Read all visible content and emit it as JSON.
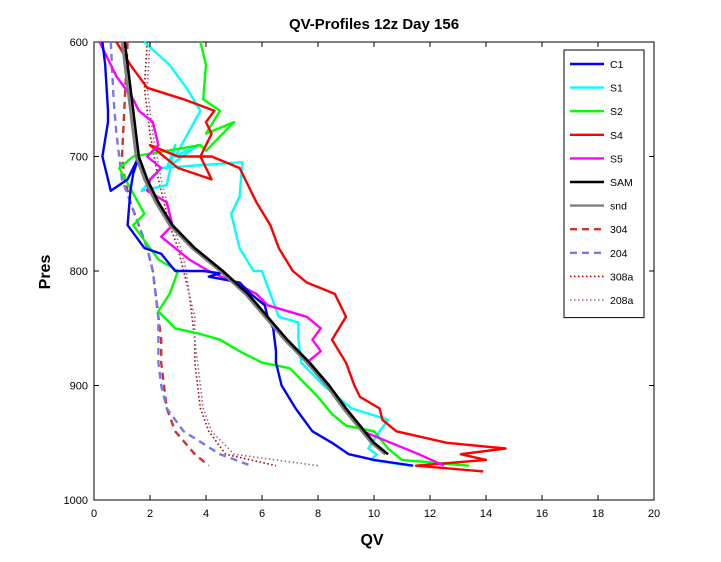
{
  "chart_data": {
    "type": "line",
    "title": "QV-Profiles 12z Day 156",
    "xlabel": "QV",
    "ylabel": "Pres",
    "xlim": [
      0,
      20
    ],
    "ylim": [
      600,
      1000
    ],
    "y_reversed": true,
    "x_ticks": [
      "0",
      "2",
      "4",
      "6",
      "8",
      "10",
      "12",
      "14",
      "16",
      "18",
      "20"
    ],
    "y_ticks": [
      "600",
      "700",
      "800",
      "900",
      "1000"
    ],
    "grid": false,
    "legend_position": "top-right",
    "series": [
      {
        "name": "C1",
        "color": "#0000ff",
        "style": "solid",
        "x": [
          0.3,
          0.4,
          0.5,
          0.5,
          0.3,
          0.6,
          1.2,
          1.6,
          1.4,
          1.3,
          1.2,
          1.8,
          2.4,
          2.9,
          3.3,
          3.9,
          4.5,
          4.1,
          5.2,
          5.6,
          6.1,
          6.2,
          6.4,
          6.5,
          6.5,
          6.6,
          6.7,
          7.2,
          7.8,
          8.5,
          9.1,
          10.0,
          11.4
        ],
        "y": [
          600,
          620,
          660,
          670,
          700,
          730,
          720,
          700,
          715,
          730,
          760,
          780,
          785,
          800,
          800,
          800,
          802,
          805,
          810,
          820,
          830,
          840,
          850,
          870,
          880,
          890,
          900,
          920,
          940,
          950,
          960,
          965,
          970
        ]
      },
      {
        "name": "S1",
        "color": "#00ffff",
        "style": "solid",
        "x": [
          1.8,
          2.7,
          3.3,
          3.8,
          2.9,
          3.7,
          2.6,
          2.9,
          2.6,
          1.7,
          2.4,
          5.3,
          5.2,
          4.9,
          5.2,
          5.7,
          6.0,
          6.6,
          7.3,
          7.3,
          7.4,
          8.2,
          9.2,
          10.5,
          10.2,
          9.8,
          10.1,
          9.9,
          11.3
        ],
        "y": [
          600,
          620,
          640,
          660,
          700,
          690,
          710,
          690,
          725,
          730,
          710,
          705,
          735,
          750,
          780,
          800,
          800,
          840,
          845,
          860,
          880,
          900,
          920,
          930,
          940,
          955,
          960,
          965,
          970
        ]
      },
      {
        "name": "S2",
        "color": "#00ff00",
        "style": "solid",
        "x": [
          3.8,
          4.0,
          3.9,
          4.5,
          4.0,
          5.0,
          4.0,
          3.8,
          1.4,
          0.9,
          1.8,
          1.4,
          2.3,
          3.0,
          2.7,
          2.3,
          2.9,
          3.8,
          4.5,
          5.2,
          6.0,
          7.0,
          8.0,
          8.5,
          9.0,
          10.0,
          10.5,
          11.0,
          13.4
        ],
        "y": [
          600,
          620,
          650,
          660,
          680,
          670,
          695,
          690,
          700,
          710,
          750,
          760,
          790,
          800,
          820,
          835,
          850,
          855,
          860,
          870,
          880,
          885,
          910,
          925,
          935,
          940,
          955,
          965,
          970
        ]
      },
      {
        "name": "S4",
        "color": "#ff0000",
        "style": "solid",
        "x": [
          0.8,
          1.3,
          1.6,
          1.9,
          3.2,
          4.3,
          4.0,
          4.2,
          4.0,
          3.8,
          4.0,
          4.2,
          3.0,
          2.0,
          3.0,
          4.2,
          5.2,
          5.4,
          5.8,
          6.3,
          6.6,
          7.1,
          7.6,
          8.6,
          9.0,
          8.5,
          9.0,
          9.3,
          9.5,
          10.2,
          10.3,
          10.8,
          12.6,
          14.7,
          13.1,
          14.0,
          11.5,
          13.9
        ],
        "y": [
          600,
          620,
          630,
          640,
          650,
          660,
          670,
          680,
          690,
          700,
          710,
          720,
          710,
          690,
          700,
          700,
          710,
          720,
          740,
          760,
          780,
          800,
          810,
          820,
          840,
          860,
          880,
          900,
          910,
          920,
          930,
          940,
          950,
          955,
          960,
          965,
          970,
          975
        ]
      },
      {
        "name": "S5",
        "color": "#ff00ff",
        "style": "solid",
        "x": [
          0.2,
          0.8,
          1.4,
          1.6,
          2.1,
          2.3,
          1.9,
          2.4,
          2.0,
          1.9,
          2.6,
          2.8,
          2.4,
          2.9,
          3.4,
          4.1,
          5.0,
          5.8,
          6.2,
          7.6,
          8.1,
          7.8,
          8.1,
          7.6,
          8.4,
          8.9,
          9.6,
          11.6,
          12.5
        ],
        "y": [
          600,
          630,
          650,
          660,
          670,
          690,
          700,
          710,
          720,
          730,
          740,
          760,
          770,
          780,
          790,
          800,
          810,
          820,
          830,
          840,
          850,
          860,
          870,
          880,
          900,
          920,
          940,
          960,
          970
        ]
      },
      {
        "name": "SAM",
        "color": "#000000",
        "style": "solid",
        "x": [
          1.1,
          1.3,
          1.5,
          1.6,
          1.9,
          2.3,
          2.8,
          3.6,
          4.6,
          5.5,
          6.2,
          6.9,
          7.7,
          8.4,
          9.0,
          10.0,
          10.5
        ],
        "y": [
          600,
          640,
          680,
          700,
          720,
          740,
          760,
          780,
          800,
          820,
          840,
          860,
          880,
          900,
          920,
          950,
          960
        ]
      },
      {
        "name": "snd",
        "color": "#7f7f7f",
        "style": "solid",
        "x": [
          1.0,
          1.2,
          1.4,
          1.5,
          1.8,
          2.2,
          2.7,
          3.5,
          4.5,
          5.4,
          6.1,
          6.8,
          7.6,
          8.3,
          8.9,
          9.9,
          10.4
        ],
        "y": [
          600,
          640,
          680,
          700,
          720,
          740,
          760,
          780,
          800,
          820,
          840,
          860,
          880,
          900,
          920,
          950,
          960
        ]
      },
      {
        "name": "304",
        "color": "#cc3333",
        "style": "dashed",
        "x": [
          1.2,
          1.1,
          1.0,
          1.1,
          1.3,
          1.6,
          1.9,
          2.1,
          2.2,
          2.3,
          2.4,
          2.4,
          2.5,
          2.6,
          2.9,
          3.6,
          4.1
        ],
        "y": [
          600,
          650,
          700,
          720,
          740,
          760,
          780,
          800,
          820,
          840,
          860,
          880,
          900,
          920,
          940,
          960,
          970
        ]
      },
      {
        "name": "204",
        "color": "#7777ee",
        "style": "dashed",
        "x": [
          0.6,
          0.7,
          0.8,
          0.9,
          1.0,
          1.3,
          1.6,
          1.9,
          2.1,
          2.2,
          2.3,
          2.3,
          2.3,
          2.4,
          2.6,
          3.2,
          4.5,
          5.6
        ],
        "y": [
          600,
          650,
          680,
          700,
          720,
          740,
          760,
          780,
          800,
          820,
          840,
          860,
          880,
          900,
          920,
          940,
          960,
          970
        ]
      },
      {
        "name": "308a",
        "color": "#aa0000",
        "style": "dotted",
        "x": [
          1.9,
          1.8,
          2.0,
          2.3,
          2.7,
          3.0,
          3.2,
          3.4,
          3.5,
          3.6,
          3.6,
          3.7,
          3.8,
          4.1,
          4.7,
          6.5
        ],
        "y": [
          600,
          640,
          680,
          720,
          760,
          780,
          800,
          820,
          840,
          860,
          880,
          900,
          920,
          940,
          960,
          970
        ]
      },
      {
        "name": "208a",
        "color": "#996699",
        "style": "dotted",
        "x": [
          2.0,
          1.9,
          2.1,
          2.4,
          2.8,
          3.1,
          3.3,
          3.4,
          3.6,
          3.6,
          3.7,
          3.8,
          3.9,
          4.2,
          5.0,
          8.0
        ],
        "y": [
          600,
          640,
          680,
          720,
          760,
          780,
          800,
          820,
          840,
          860,
          880,
          900,
          920,
          940,
          960,
          970
        ]
      }
    ]
  }
}
